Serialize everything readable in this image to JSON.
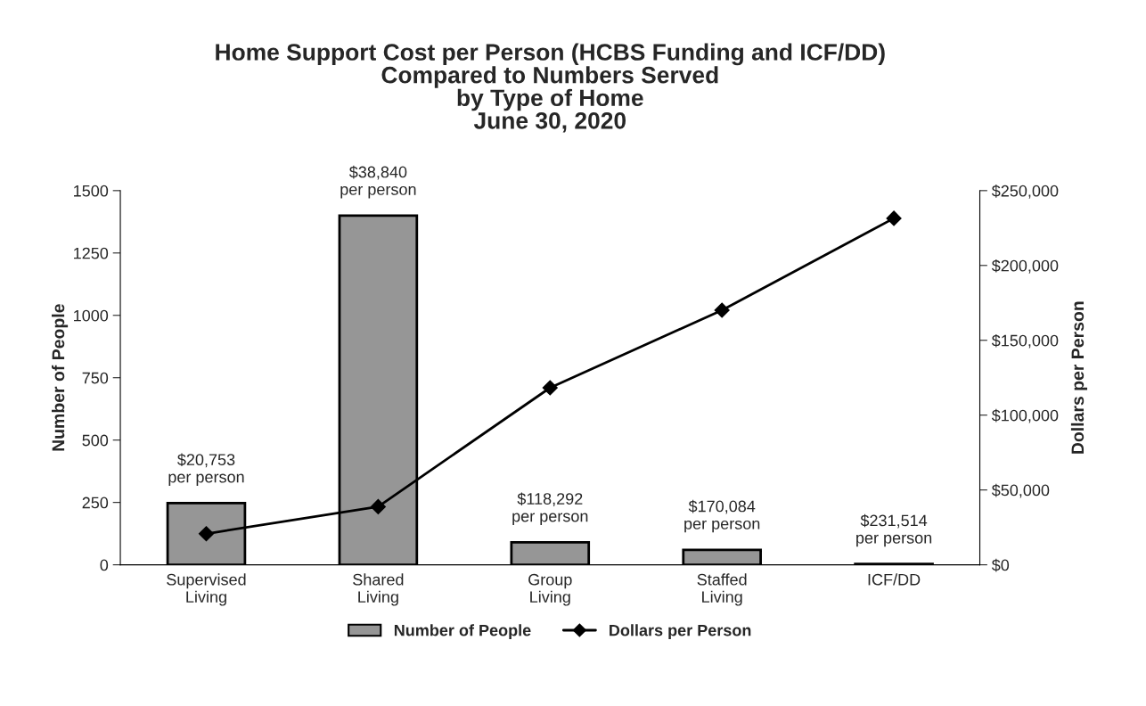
{
  "chart_data": {
    "type": "bar",
    "title": "Home Support Cost per Person (HCBS Funding and ICF/DD)\nCompared to Numbers Served\nby Type of Home\nJune 30, 2020",
    "categories": [
      "Supervised\nLiving",
      "Shared\nLiving",
      "Group\nLiving",
      "Staffed\nLiving",
      "ICF/DD"
    ],
    "series": [
      {
        "name": "Number of People",
        "color": "#969696",
        "values": [
          247,
          1400,
          90,
          60,
          3
        ]
      },
      {
        "name": "Dollars per Person",
        "type": "line",
        "axis": "y2",
        "color": "#000000",
        "marker": "diamond",
        "values": [
          20753,
          38840,
          118292,
          170084,
          231514
        ]
      }
    ],
    "annotations": [
      {
        "text": "$20,753\nper person",
        "x": "Supervised\nLiving",
        "y": 247
      },
      {
        "text": "$38,840\nper person",
        "x": "Shared\nLiving",
        "y": 1400
      },
      {
        "text": "$118,292\nper person",
        "x": "Group\nLiving",
        "y": 90
      },
      {
        "text": "$170,084\nper person",
        "x": "Staffed\nLiving",
        "y": 60
      },
      {
        "text": "$231,514\nper person",
        "x": "ICF/DD",
        "y": 3
      }
    ],
    "ylabel": "Number of People",
    "y2label": "Dollars per Person",
    "ylim": [
      0,
      1500
    ],
    "yticks": [
      0,
      250,
      500,
      750,
      1000,
      1250,
      1500
    ],
    "y2lim": [
      0,
      250000
    ],
    "y2ticks": [
      {
        "value": 0,
        "label": "$0"
      },
      {
        "value": 50000,
        "label": "$50,000"
      },
      {
        "value": 100000,
        "label": "$100,000"
      },
      {
        "value": 150000,
        "label": "$150,000"
      },
      {
        "value": 200000,
        "label": "$200,000"
      },
      {
        "value": 250000,
        "label": "$250,000"
      }
    ],
    "grid": false,
    "legend": "bottom"
  }
}
